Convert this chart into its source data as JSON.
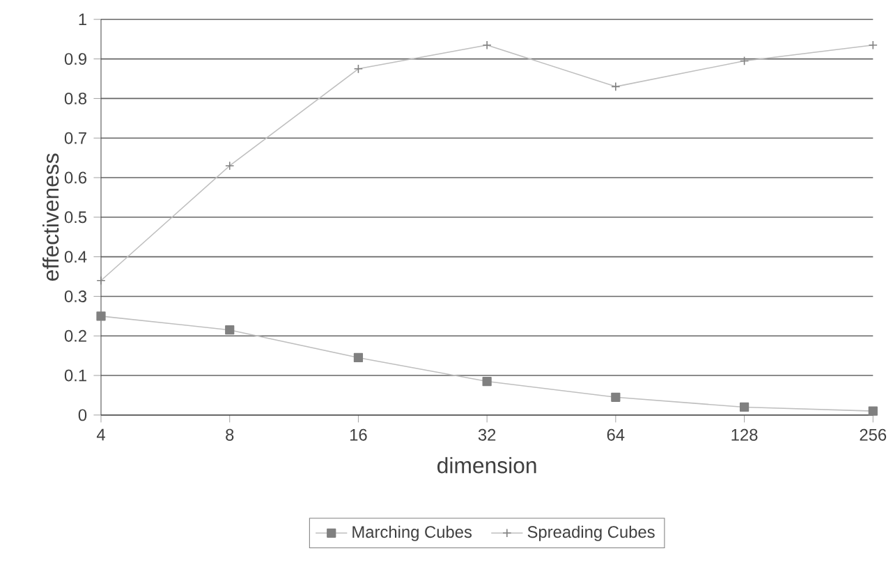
{
  "chart_data": {
    "type": "line",
    "xlabel": "dimension",
    "ylabel": "effectiveness",
    "x": [
      4,
      8,
      16,
      32,
      64,
      128,
      256
    ],
    "series": [
      {
        "name": "Marching Cubes",
        "color": "#808080",
        "marker": "square",
        "values": [
          0.25,
          0.215,
          0.145,
          0.085,
          0.045,
          0.02,
          0.01
        ]
      },
      {
        "name": "Spreading Cubes",
        "color": "#808080",
        "marker": "cross",
        "values": [
          0.34,
          0.63,
          0.875,
          0.935,
          0.83,
          0.895,
          0.935
        ]
      }
    ],
    "log": "x",
    "xlim": [
      4,
      256
    ],
    "xticks": [
      4,
      8,
      16,
      32,
      64,
      128,
      256
    ],
    "ylim": [
      0,
      1
    ],
    "yticks": [
      0,
      0.1,
      0.2,
      0.3,
      0.4,
      0.5,
      0.6,
      0.7,
      0.8,
      0.9,
      1
    ],
    "grid": "y",
    "legend": "bottom"
  }
}
